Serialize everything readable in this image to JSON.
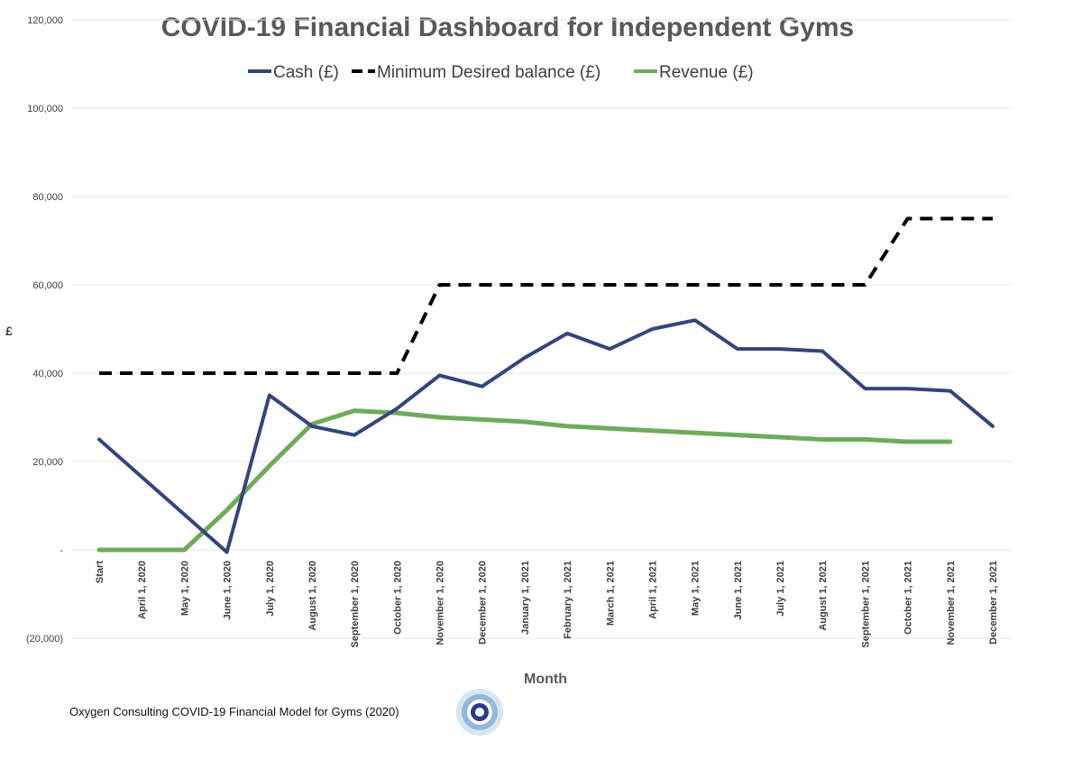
{
  "colors": {
    "cash": "#34457d",
    "minimum": "#000000",
    "revenue": "#6fab5a",
    "grid": "#e7e7e7"
  },
  "footer": {
    "text": "Oxygen Consulting  COVID-19 Financial Model for Gyms  (2020)",
    "logo_icon": "target-logo-icon"
  },
  "chart_data": {
    "type": "line",
    "title": "COVID-19 Financial Dashboard for Independent Gyms",
    "xlabel": "Month",
    "ylabel": "£",
    "ylim": [
      -20000,
      120000
    ],
    "yticks": [
      {
        "value": 120000,
        "label": "120,000"
      },
      {
        "value": 100000,
        "label": "100,000"
      },
      {
        "value": 80000,
        "label": "80,000"
      },
      {
        "value": 60000,
        "label": "60,000"
      },
      {
        "value": 40000,
        "label": "40,000"
      },
      {
        "value": 20000,
        "label": "20,000"
      },
      {
        "value": 0,
        "label": "-"
      },
      {
        "value": -20000,
        "label": "(20,000)"
      }
    ],
    "grid": true,
    "legend": "top",
    "categories": [
      "Start",
      "April 1, 2020",
      "May 1, 2020",
      "June 1, 2020",
      "July 1, 2020",
      "August 1, 2020",
      "September 1, 2020",
      "October 1, 2020",
      "November 1, 2020",
      "December 1, 2020",
      "January 1, 2021",
      "February 1, 2021",
      "March 1, 2021",
      "April 1, 2021",
      "May 1, 2021",
      "June 1, 2021",
      "July 1, 2021",
      "August 1, 2021",
      "September 1, 2021",
      "October 1, 2021",
      "November 1, 2021",
      "December 1, 2021"
    ],
    "series": [
      {
        "name": "Cash (£)",
        "key": "cash",
        "style": "solid",
        "values": [
          25000,
          16500,
          8000,
          -500,
          35000,
          28000,
          26000,
          32000,
          39500,
          37000,
          43500,
          49000,
          45500,
          50000,
          52000,
          45500,
          45500,
          45000,
          36500,
          36500,
          36000,
          28000
        ]
      },
      {
        "name": "Minimum Desired balance (£)",
        "key": "minimum",
        "style": "dashed",
        "values": [
          40000,
          40000,
          40000,
          40000,
          40000,
          40000,
          40000,
          40000,
          60000,
          60000,
          60000,
          60000,
          60000,
          60000,
          60000,
          60000,
          60000,
          60000,
          60000,
          75000,
          75000,
          75000
        ]
      },
      {
        "name": "Revenue (£)",
        "key": "revenue",
        "style": "solid",
        "values": [
          0,
          0,
          0,
          9000,
          19000,
          28500,
          31500,
          31000,
          30000,
          29500,
          29000,
          28000,
          27500,
          27000,
          26500,
          26000,
          25500,
          25000,
          25000,
          24500,
          24500,
          null
        ]
      }
    ]
  }
}
